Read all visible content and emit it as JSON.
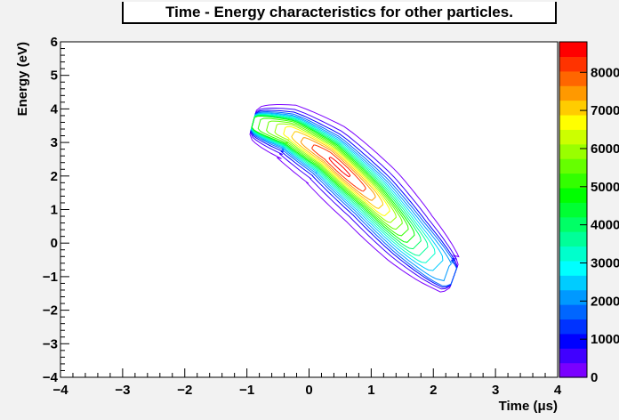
{
  "title": "Time - Energy characteristics for other particles.",
  "chart_data": {
    "type": "heatmap",
    "title": "Time - Energy characteristics for other particles.",
    "xlabel": "Time (μs)",
    "ylabel": "Energy (eV)",
    "xlim": [
      -4,
      4
    ],
    "ylim": [
      -4,
      6
    ],
    "x_ticks": [
      "−4",
      "−3",
      "−2",
      "−1",
      "0",
      "1",
      "2",
      "3",
      "4"
    ],
    "y_ticks": [
      "−4",
      "−3",
      "−2",
      "−1",
      "0",
      "1",
      "2",
      "3",
      "4",
      "5",
      "6"
    ],
    "x_tick_values": [
      -4,
      -3,
      -2,
      -1,
      0,
      1,
      2,
      3,
      4
    ],
    "y_tick_values": [
      -4,
      -3,
      -2,
      -1,
      0,
      1,
      2,
      3,
      4,
      5,
      6
    ],
    "style": "contour",
    "distribution": {
      "ridge": [
        [
          -0.9,
          3.6
        ],
        [
          -0.3,
          3.3
        ],
        [
          0.3,
          2.6
        ],
        [
          1.0,
          1.4
        ],
        [
          1.6,
          0.2
        ],
        [
          2.2,
          -0.9
        ],
        [
          2.8,
          -1.3
        ]
      ],
      "peak": [
        0.5,
        2.3
      ],
      "peak_value": 8700,
      "contour_levels": [
        200,
        600,
        1100,
        1600,
        2100,
        2600,
        3100,
        3600,
        4100,
        4600,
        5100,
        5600,
        6100,
        6600,
        7100,
        7600,
        8100,
        8600
      ]
    },
    "colorbar": {
      "range": [
        0,
        8800
      ],
      "tick_values": [
        0,
        1000,
        2000,
        3000,
        4000,
        5000,
        6000,
        7000,
        8000
      ],
      "tick_labels": [
        "0",
        "1000",
        "2000",
        "3000",
        "4000",
        "5000",
        "6000",
        "7000",
        "8000"
      ],
      "colors": [
        "#7a00ff",
        "#4000ff",
        "#0000ff",
        "#0033ff",
        "#0066ff",
        "#0099ff",
        "#00ccff",
        "#00ffff",
        "#00ffcc",
        "#00ff99",
        "#00ff66",
        "#00ff33",
        "#00ff00",
        "#33ff00",
        "#66ff00",
        "#99ff00",
        "#ccff00",
        "#ffff00",
        "#ffcc00",
        "#ff9900",
        "#ff6600",
        "#ff3300",
        "#ff0000"
      ]
    },
    "grid": false,
    "legend": "colorbar right"
  }
}
